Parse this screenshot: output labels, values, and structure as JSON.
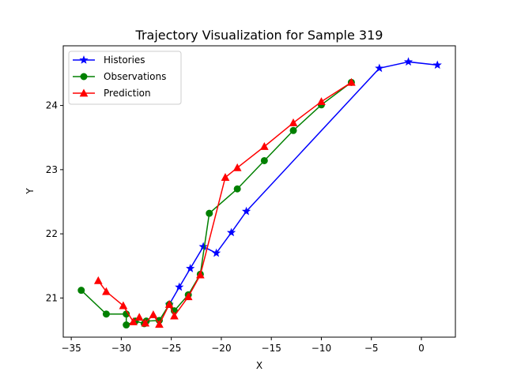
{
  "chart_data": {
    "type": "line",
    "title": "Trajectory Visualization for Sample 319",
    "xlabel": "X",
    "ylabel": "Y",
    "xlim": [
      -35.8,
      3.4
    ],
    "ylim": [
      20.39,
      24.93
    ],
    "xticks": [
      -35,
      -30,
      -25,
      -20,
      -15,
      -10,
      -5,
      0
    ],
    "yticks": [
      21,
      22,
      23,
      24
    ],
    "grid": false,
    "legend_position": "upper-left",
    "series": [
      {
        "name": "Histories",
        "color": "#0000ff",
        "marker": "star",
        "points": [
          [
            -25.2,
            20.9
          ],
          [
            -24.2,
            21.17
          ],
          [
            -23.1,
            21.46
          ],
          [
            -21.8,
            21.8
          ],
          [
            -20.5,
            21.7
          ],
          [
            -19.0,
            22.02
          ],
          [
            -17.5,
            22.35
          ],
          [
            -4.2,
            24.58
          ],
          [
            -1.3,
            24.68
          ],
          [
            1.6,
            24.63
          ]
        ]
      },
      {
        "name": "Observations",
        "color": "#008000",
        "marker": "circle",
        "points": [
          [
            -34.0,
            21.12
          ],
          [
            -31.5,
            20.75
          ],
          [
            -29.5,
            20.75
          ],
          [
            -29.5,
            20.58
          ],
          [
            -28.6,
            20.64
          ],
          [
            -27.7,
            20.6
          ],
          [
            -27.5,
            20.64
          ],
          [
            -26.2,
            20.65
          ],
          [
            -25.2,
            20.9
          ],
          [
            -24.7,
            20.8
          ],
          [
            -23.3,
            21.05
          ],
          [
            -22.1,
            21.37
          ],
          [
            -21.2,
            22.32
          ],
          [
            -18.4,
            22.7
          ],
          [
            -15.7,
            23.14
          ],
          [
            -12.8,
            23.61
          ],
          [
            -10.0,
            24.01
          ],
          [
            -7.0,
            24.36
          ]
        ]
      },
      {
        "name": "Prediction",
        "color": "#ff0000",
        "marker": "triangle",
        "points": [
          [
            -32.3,
            21.27
          ],
          [
            -31.5,
            21.1
          ],
          [
            -29.8,
            20.88
          ],
          [
            -28.8,
            20.63
          ],
          [
            -28.2,
            20.7
          ],
          [
            -27.6,
            20.61
          ],
          [
            -26.8,
            20.74
          ],
          [
            -26.2,
            20.59
          ],
          [
            -25.2,
            20.9
          ],
          [
            -24.7,
            20.72
          ],
          [
            -23.3,
            21.02
          ],
          [
            -22.1,
            21.36
          ],
          [
            -19.6,
            22.88
          ],
          [
            -18.4,
            23.03
          ],
          [
            -15.7,
            23.36
          ],
          [
            -12.8,
            23.73
          ],
          [
            -10.0,
            24.06
          ],
          [
            -7.0,
            24.36
          ]
        ]
      }
    ]
  }
}
